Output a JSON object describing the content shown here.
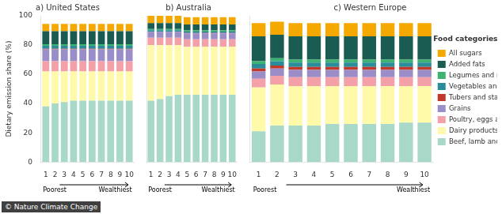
{
  "chart_data": [
    {
      "type": "bar",
      "title": "a) United States",
      "categories": [
        1,
        2,
        3,
        4,
        5,
        6,
        7,
        8,
        9,
        10
      ],
      "stacked": true,
      "grid": false,
      "ylabel": "Dietary emission share (%)",
      "ylim": [
        0,
        100
      ],
      "yticks": [
        0,
        20,
        40,
        60,
        80,
        100
      ],
      "annotations": [
        "Poorest",
        "Wealthiest"
      ],
      "series": [
        {
          "name": "Beef, lamb and pork",
          "color": "#A8D8C8",
          "values": [
            38,
            40,
            41,
            42,
            42,
            42,
            42,
            42,
            42,
            42
          ]
        },
        {
          "name": "Dairy products",
          "color": "#FFFAAA",
          "values": [
            24,
            22,
            21,
            20,
            20,
            20,
            20,
            20,
            20,
            20
          ]
        },
        {
          "name": "Poultry, eggs and fish",
          "color": "#F4A0A8",
          "values": [
            7,
            7,
            7,
            7,
            7,
            7,
            7,
            7,
            7,
            7
          ]
        },
        {
          "name": "Grains",
          "color": "#9B8DC8",
          "values": [
            8,
            8,
            8,
            8,
            8,
            8,
            8,
            8,
            8,
            8
          ]
        },
        {
          "name": "Tubers and starchy vegetables",
          "color": "#C0392B",
          "values": [
            0.5,
            0.5,
            0.5,
            0.5,
            0.5,
            0.5,
            0.5,
            0.5,
            0.5,
            0.5
          ]
        },
        {
          "name": "Vegetables and fruits",
          "color": "#2A8B9A",
          "values": [
            2,
            2,
            2,
            2,
            2,
            2,
            2,
            2,
            2,
            2
          ]
        },
        {
          "name": "Legumes and nuts",
          "color": "#3CB371",
          "values": [
            1,
            1,
            1,
            1,
            1,
            1,
            1,
            1,
            1,
            1
          ]
        },
        {
          "name": "Added fats",
          "color": "#1A5C52",
          "values": [
            9,
            9,
            9,
            9,
            9,
            9,
            9,
            9,
            9,
            9
          ]
        },
        {
          "name": "All sugars",
          "color": "#F5A800",
          "values": [
            5,
            5,
            5,
            5,
            5,
            5,
            5,
            5,
            5,
            5
          ]
        }
      ]
    },
    {
      "type": "bar",
      "title": "b) Australia",
      "categories": [
        1,
        2,
        3,
        4,
        5,
        6,
        7,
        8,
        9,
        10
      ],
      "stacked": true,
      "grid": false,
      "tick_labels": "x",
      "ylim": [
        0,
        100
      ],
      "yticks": [
        0,
        20,
        40,
        60,
        80,
        100
      ],
      "annotations": [
        "Poorest",
        "Wealthiest"
      ],
      "series": [
        {
          "name": "Beef, lamb and pork",
          "color": "#A8D8C8",
          "values": [
            42,
            43,
            45,
            46,
            46,
            46,
            46,
            46,
            46,
            46
          ]
        },
        {
          "name": "Dairy products",
          "color": "#FFFAAA",
          "values": [
            38,
            37,
            35,
            34,
            33,
            33,
            33,
            33,
            33,
            33
          ]
        },
        {
          "name": "Poultry, eggs and fish",
          "color": "#F4A0A8",
          "values": [
            5,
            5,
            5,
            5,
            5,
            5,
            5,
            5,
            5,
            5
          ]
        },
        {
          "name": "Grains",
          "color": "#9B8DC8",
          "values": [
            4,
            4,
            4,
            4,
            4,
            4,
            4,
            4,
            4,
            4
          ]
        },
        {
          "name": "Tubers and starchy vegetables",
          "color": "#C0392B",
          "values": [
            0.2,
            0.2,
            0.2,
            0.2,
            0.2,
            0.2,
            0.2,
            0.2,
            0.2,
            0.2
          ]
        },
        {
          "name": "Vegetables and fruits",
          "color": "#2A8B9A",
          "values": [
            1,
            1,
            1,
            1,
            1,
            1,
            1,
            1,
            1,
            1
          ]
        },
        {
          "name": "Legumes and nuts",
          "color": "#3CB371",
          "values": [
            0.8,
            0.8,
            0.8,
            0.8,
            0.8,
            0.8,
            0.8,
            0.8,
            0.8,
            0.8
          ]
        },
        {
          "name": "Added fats",
          "color": "#1A5C52",
          "values": [
            4,
            4,
            4,
            4,
            4,
            4,
            4,
            4,
            4,
            4
          ]
        },
        {
          "name": "All sugars",
          "color": "#F5A800",
          "values": [
            5,
            5,
            5,
            5,
            5,
            5,
            5,
            5,
            5,
            5
          ]
        }
      ]
    },
    {
      "type": "bar",
      "title": "c) Western Europe",
      "categories": [
        1,
        2,
        3,
        4,
        5,
        6,
        7,
        8,
        9,
        10
      ],
      "stacked": true,
      "grid": false,
      "tick_labels": "x",
      "ylim": [
        0,
        100
      ],
      "yticks": [
        0,
        20,
        40,
        60,
        80,
        100
      ],
      "annotations": [
        "Poorest",
        "Wealthiest"
      ],
      "legend": "right",
      "legend_title": "Food categories",
      "series": [
        {
          "name": "Beef, lamb and pork",
          "color": "#A8D8C8",
          "values": [
            21,
            25,
            25,
            25,
            26,
            26,
            26,
            26,
            27,
            27
          ]
        },
        {
          "name": "Dairy products",
          "color": "#FFFAAA",
          "values": [
            30,
            28,
            27,
            27,
            26,
            26,
            26,
            26,
            25,
            25
          ]
        },
        {
          "name": "Poultry, eggs and fish",
          "color": "#F4A0A8",
          "values": [
            6,
            6,
            6,
            6,
            6,
            6,
            6,
            6,
            6,
            6
          ]
        },
        {
          "name": "Grains",
          "color": "#9B8DC8",
          "values": [
            5,
            5,
            5,
            5,
            5,
            5,
            5,
            5,
            5,
            5
          ]
        },
        {
          "name": "Tubers and starchy vegetables",
          "color": "#C0392B",
          "values": [
            2,
            2,
            2,
            2,
            2,
            2,
            2,
            2,
            2,
            2
          ]
        },
        {
          "name": "Vegetables and fruits",
          "color": "#2A8B9A",
          "values": [
            3,
            3,
            3,
            3,
            3,
            3,
            3,
            3,
            3,
            3
          ]
        },
        {
          "name": "Legumes and nuts",
          "color": "#3CB371",
          "values": [
            2,
            2,
            2,
            2,
            2,
            2,
            2,
            2,
            2,
            2
          ]
        },
        {
          "name": "Added fats",
          "color": "#1A5C52",
          "values": [
            17,
            16,
            16,
            16,
            16,
            16,
            16,
            16,
            16,
            16
          ]
        },
        {
          "name": "All sugars",
          "color": "#F5A800",
          "values": [
            9,
            9,
            9,
            9,
            9,
            9,
            9,
            9,
            9,
            9
          ]
        }
      ]
    }
  ],
  "caption": "© Nature Climate Change"
}
